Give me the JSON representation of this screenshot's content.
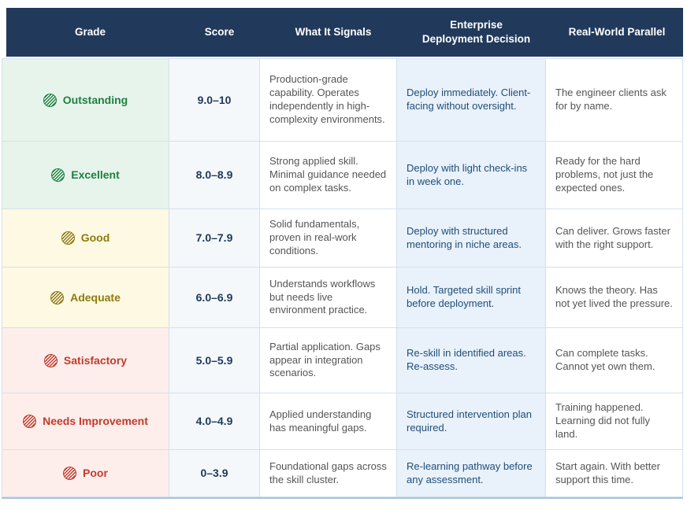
{
  "table": {
    "columns": [
      [
        "Grade"
      ],
      [
        "Score"
      ],
      [
        "What It Signals"
      ],
      [
        "Enterprise",
        "Deployment Decision"
      ],
      [
        "Real-World Parallel"
      ]
    ],
    "rows": [
      {
        "grade": "Outstanding",
        "tier": "green",
        "score": "9.0–10",
        "signals": "Production-grade capability. Operates independently in high-complexity environments.",
        "decision": "Deploy immediately. Client-facing without oversight.",
        "parallel": "The engineer clients ask for by name."
      },
      {
        "grade": "Excellent",
        "tier": "green",
        "score": "8.0–8.9",
        "signals": "Strong applied skill. Minimal guidance needed on complex tasks.",
        "decision": "Deploy with light check-ins in week one.",
        "parallel": "Ready for the hard problems, not just the expected ones."
      },
      {
        "grade": "Good",
        "tier": "yellow",
        "score": "7.0–7.9",
        "signals": "Solid fundamentals, proven in real-work conditions.",
        "decision": "Deploy with structured mentoring in niche areas.",
        "parallel": "Can deliver. Grows faster with the right support."
      },
      {
        "grade": "Adequate",
        "tier": "yellow",
        "score": "6.0–6.9",
        "signals": "Understands workflows but needs live environment practice.",
        "decision": "Hold. Targeted skill sprint before deployment.",
        "parallel": "Knows the theory. Has not yet lived the pressure."
      },
      {
        "grade": "Satisfactory",
        "tier": "red",
        "score": "5.0–5.9",
        "signals": "Partial application. Gaps appear in integration scenarios.",
        "decision": "Re-skill in identified areas. Re-assess.",
        "parallel": "Can complete tasks. Cannot yet own them."
      },
      {
        "grade": "Needs Improvement",
        "tier": "red",
        "score": "4.0–4.9",
        "signals": "Applied understanding has meaningful gaps.",
        "decision": "Structured intervention plan required.",
        "parallel": "Training happened. Learning did not fully land."
      },
      {
        "grade": "Poor",
        "tier": "red",
        "score": "0–3.9",
        "signals": "Foundational gaps across the skill cluster.",
        "decision": "Re-learning pathway before any assessment.",
        "parallel": "Start again. With better support this time."
      }
    ]
  },
  "colors": {
    "header_bg": "#21395b",
    "header_text": "#ffffff",
    "green_text": "#1e8040",
    "green_bg": "#e6f4eb",
    "yellow_text": "#8f7a10",
    "yellow_bg": "#fdf9e2",
    "red_text": "#c23b2b",
    "red_bg": "#fdeeec",
    "score_bg": "#f4f8fb",
    "score_text": "#21395b",
    "decision_bg": "#e9f1fa",
    "decision_text": "#1f4e79",
    "body_text": "#555555",
    "border": "#d5e0ea",
    "bottom_border": "#a9c4dd"
  }
}
